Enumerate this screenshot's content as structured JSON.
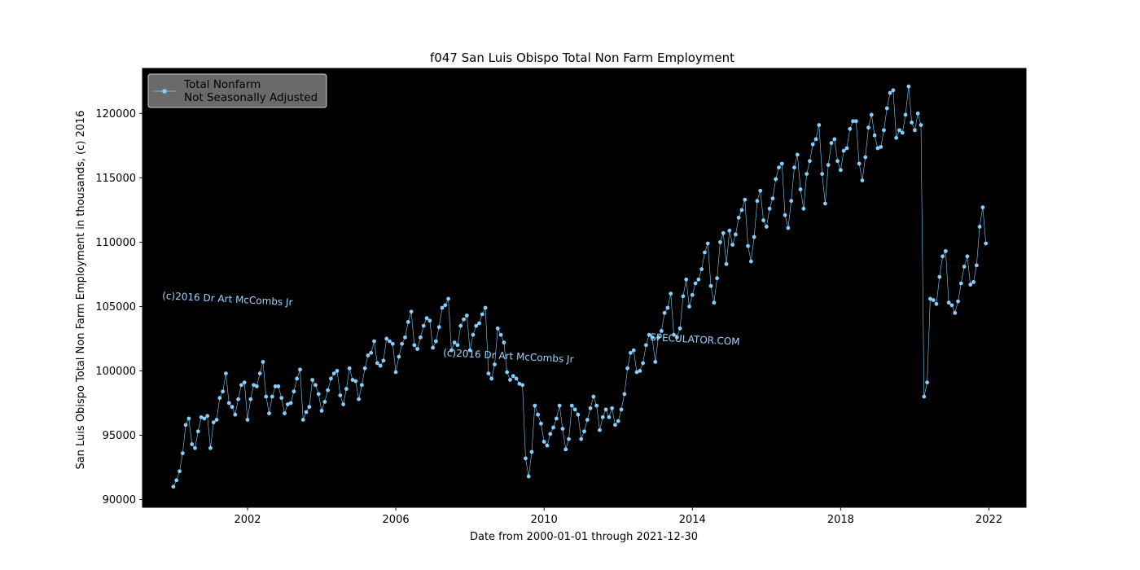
{
  "chart_data": {
    "type": "line",
    "title": "f047 San Luis Obispo Total Non Farm Employment",
    "xlabel": "Date from 2000-01-01 through 2021-12-30",
    "ylabel": "San Luis Obispo Total Non Farm Employment in thousands, (c) 2016",
    "xlim": [
      "1999-03-01",
      "2023-01-01"
    ],
    "ylim": [
      89400,
      123500
    ],
    "x_ticks": [
      "2002",
      "2006",
      "2010",
      "2014",
      "2018",
      "2022"
    ],
    "y_ticks": [
      90000,
      95000,
      100000,
      105000,
      110000,
      115000,
      120000
    ],
    "grid": false,
    "legend_position": "upper-left",
    "background_color": "#000000",
    "series_color": "#87cefa",
    "legend": [
      "Total Nonfarm",
      "Not Seasonally Adjusted"
    ],
    "watermarks": [
      "(c)2016 Dr Art McCombs Jr",
      "(c)2016 Dr Art McCombs Jr",
      "SPECULATOR.COM"
    ],
    "series": [
      {
        "name": "Total Nonfarm Not Seasonally Adjusted",
        "start": "2000-01",
        "frequency": "monthly",
        "values": [
          91000,
          91500,
          92200,
          93600,
          95800,
          96300,
          94300,
          94000,
          95300,
          96400,
          96300,
          96500,
          94000,
          96000,
          96200,
          97900,
          98400,
          99800,
          97500,
          97200,
          96600,
          97800,
          98900,
          99100,
          96200,
          97800,
          98900,
          98800,
          99800,
          100700,
          98000,
          96700,
          98000,
          98800,
          98800,
          97900,
          96700,
          97400,
          97500,
          98400,
          99400,
          100100,
          96200,
          96800,
          97200,
          99300,
          98900,
          98200,
          96900,
          97600,
          98500,
          99400,
          99800,
          100000,
          98100,
          97400,
          98600,
          100200,
          99300,
          99200,
          97800,
          98900,
          100200,
          101200,
          101400,
          102300,
          100600,
          100400,
          100800,
          102500,
          102300,
          102100,
          99900,
          101100,
          102100,
          102600,
          103800,
          104600,
          102000,
          101700,
          102600,
          103500,
          104100,
          103900,
          101800,
          102300,
          103400,
          104900,
          105100,
          105600,
          101600,
          102200,
          102000,
          103500,
          104000,
          104300,
          101600,
          102800,
          103500,
          103700,
          104400,
          104900,
          99800,
          99400,
          100500,
          103300,
          102800,
          102200,
          99900,
          99300,
          99600,
          99400,
          99000,
          98900,
          93200,
          91800,
          93700,
          97300,
          96600,
          95900,
          94500,
          94200,
          95100,
          95600,
          96300,
          97300,
          95500,
          93900,
          94700,
          97300,
          97000,
          96600,
          94700,
          95300,
          96200,
          97100,
          98000,
          97300,
          95400,
          96400,
          97000,
          96400,
          97100,
          95800,
          96100,
          97000,
          98200,
          100200,
          101400,
          101600,
          99900,
          100000,
          100600,
          102000,
          102800,
          102600,
          100700,
          102600,
          103100,
          104500,
          104900,
          106000,
          102800,
          102600,
          103300,
          105800,
          107100,
          105000,
          105900,
          106800,
          107100,
          107900,
          109200,
          109900,
          106600,
          105300,
          107200,
          110000,
          110700,
          108300,
          110900,
          109800,
          110600,
          111900,
          112500,
          113300,
          109700,
          108500,
          110400,
          113200,
          114000,
          111700,
          111200,
          112600,
          113400,
          114900,
          115800,
          116100,
          112100,
          111100,
          113200,
          115800,
          116800,
          114100,
          112600,
          115300,
          116300,
          117600,
          118000,
          119100,
          115300,
          113000,
          116000,
          117700,
          118000,
          116300,
          115600,
          117100,
          117300,
          118800,
          119400,
          119400,
          116100,
          114800,
          116600,
          118900,
          119900,
          118300,
          117300,
          117400,
          118700,
          120400,
          121600,
          121800,
          118100,
          118700,
          118500,
          119900,
          122100,
          119300,
          118700,
          120000,
          119100,
          98000,
          99100,
          105600,
          105500,
          105200,
          107300,
          108900,
          109300,
          105300,
          105100,
          104500,
          105400,
          106800,
          108100,
          108900,
          106700,
          106900,
          108200,
          111200,
          112700,
          109900
        ]
      }
    ]
  }
}
